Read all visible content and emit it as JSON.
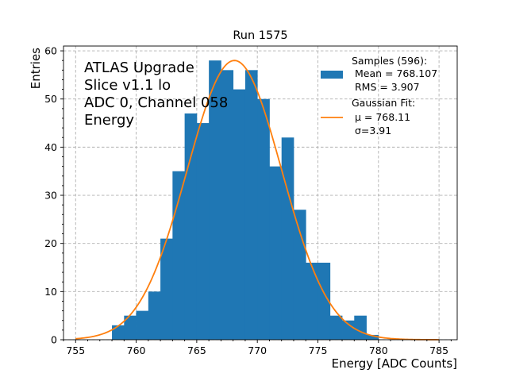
{
  "chart_data": {
    "type": "bar",
    "title": "Run 1575",
    "xlabel": "Energy [ADC Counts]",
    "ylabel": "Entries",
    "xlim": [
      754.0,
      786.5
    ],
    "ylim": [
      0,
      61
    ],
    "xticks": [
      755,
      760,
      765,
      770,
      775,
      780,
      785
    ],
    "yticks": [
      0,
      10,
      20,
      30,
      40,
      50,
      60
    ],
    "grid": true,
    "bin_width": 1,
    "bin_edges_start": 758,
    "values": [
      3,
      5,
      6,
      10,
      21,
      35,
      47,
      45,
      58,
      56,
      52,
      56,
      50,
      36,
      42,
      27,
      16,
      16,
      5,
      4,
      5,
      1
    ],
    "bar_color": "#1f77b4",
    "annotation_lines": [
      "ATLAS Upgrade",
      "Slice v1.1 lo",
      "ADC 0, Channel 058",
      "Energy"
    ],
    "fit": {
      "type": "gaussian",
      "mu": 768.11,
      "sigma": 3.91,
      "amplitude": 58,
      "x_range": [
        755,
        785
      ],
      "color": "#ff7f0e"
    },
    "legend": {
      "position": "top-right",
      "samples_lines": [
        "Samples (596):",
        " Mean = 768.107",
        " RMS = 3.907"
      ],
      "fit_lines": [
        "Gaussian Fit:",
        " μ = 768.11",
        " σ=3.91"
      ]
    }
  }
}
